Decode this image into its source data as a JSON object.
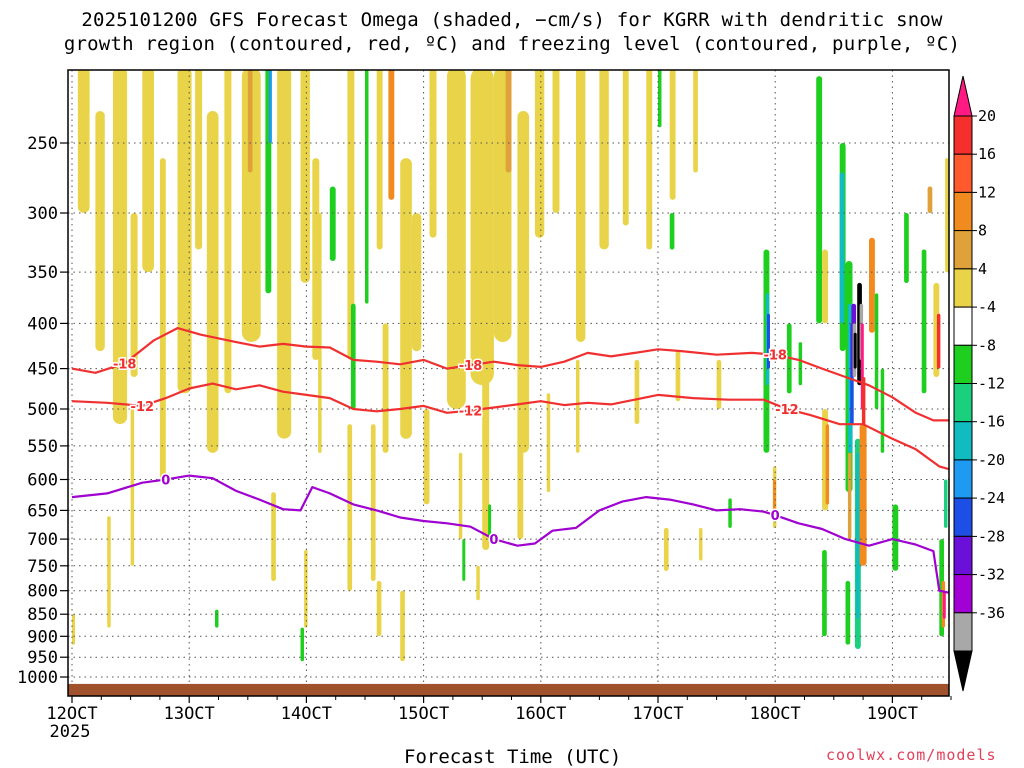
{
  "chart_data": {
    "type": "heatmap",
    "title": "2025101200 GFS Forecast Omega (shaded, −cm/s) for KGRR with dendritic snow\ngrowth region (contoured, red, ºC) and freezing level (contoured, purple, ºC)",
    "xlabel": "Forecast Time (UTC)",
    "ylabel": "",
    "x_ticks": [
      "12OCT",
      "13OCT",
      "14OCT",
      "15OCT",
      "16OCT",
      "17OCT",
      "18OCT",
      "19OCT"
    ],
    "x_tick_sub": "2025",
    "y_ticks": [
      250,
      300,
      350,
      400,
      450,
      500,
      550,
      600,
      650,
      700,
      750,
      800,
      850,
      900,
      950,
      1000
    ],
    "ylim": [
      1025,
      200
    ],
    "xlim_days": [
      12.0,
      19.5
    ],
    "grid": true,
    "colorbar": {
      "labels": [
        "20",
        "16",
        "12",
        "8",
        "4",
        "-4",
        "-8",
        "-12",
        "-16",
        "-20",
        "-24",
        "-28",
        "-32",
        "-36"
      ],
      "colors": [
        "#ff1a84",
        "#f52e2e",
        "#ff5a2e",
        "#f28b1f",
        "#dfa23a",
        "#e9d449",
        "#ffffff",
        "#1fcf1f",
        "#1acf7d",
        "#10bcc0",
        "#1e9af3",
        "#1d4fe6",
        "#6a10d8",
        "#a300d6",
        "#a8a8a8",
        "#000000"
      ]
    },
    "contours": [
      {
        "label": "-18",
        "color": "#f03030",
        "points": [
          [
            12.0,
            450
          ],
          [
            12.2,
            455
          ],
          [
            12.45,
            444
          ],
          [
            12.7,
            418
          ],
          [
            12.9,
            405
          ],
          [
            13.1,
            412
          ],
          [
            13.4,
            420
          ],
          [
            13.6,
            425
          ],
          [
            13.8,
            422
          ],
          [
            14.0,
            425
          ],
          [
            14.2,
            426
          ],
          [
            14.4,
            440
          ],
          [
            14.6,
            442
          ],
          [
            14.8,
            445
          ],
          [
            15.0,
            440
          ],
          [
            15.2,
            450
          ],
          [
            15.4,
            446
          ],
          [
            15.6,
            442
          ],
          [
            15.8,
            446
          ],
          [
            16.0,
            448
          ],
          [
            16.2,
            442
          ],
          [
            16.4,
            432
          ],
          [
            16.6,
            436
          ],
          [
            16.8,
            432
          ],
          [
            17.0,
            428
          ],
          [
            17.2,
            430
          ],
          [
            17.5,
            434
          ],
          [
            17.8,
            432
          ],
          [
            18.0,
            434
          ],
          [
            18.2,
            440
          ],
          [
            18.4,
            450
          ],
          [
            18.6,
            460
          ],
          [
            18.8,
            470
          ],
          [
            19.0,
            485
          ],
          [
            19.2,
            505
          ],
          [
            19.35,
            515
          ],
          [
            19.5,
            515
          ]
        ]
      },
      {
        "label": "-12",
        "color": "#f03030",
        "points": [
          [
            12.0,
            490
          ],
          [
            12.3,
            492
          ],
          [
            12.6,
            496
          ],
          [
            12.8,
            486
          ],
          [
            13.0,
            474
          ],
          [
            13.2,
            468
          ],
          [
            13.4,
            475
          ],
          [
            13.6,
            470
          ],
          [
            13.8,
            478
          ],
          [
            14.0,
            482
          ],
          [
            14.2,
            486
          ],
          [
            14.4,
            500
          ],
          [
            14.6,
            503
          ],
          [
            14.8,
            500
          ],
          [
            15.0,
            496
          ],
          [
            15.2,
            505
          ],
          [
            15.4,
            502
          ],
          [
            15.6,
            498
          ],
          [
            15.8,
            494
          ],
          [
            16.0,
            490
          ],
          [
            16.2,
            495
          ],
          [
            16.4,
            492
          ],
          [
            16.6,
            494
          ],
          [
            16.8,
            488
          ],
          [
            17.0,
            482
          ],
          [
            17.3,
            486
          ],
          [
            17.6,
            488
          ],
          [
            17.9,
            488
          ],
          [
            18.1,
            500
          ],
          [
            18.3,
            508
          ],
          [
            18.55,
            520
          ],
          [
            18.75,
            520
          ],
          [
            19.0,
            540
          ],
          [
            19.2,
            555
          ],
          [
            19.4,
            580
          ],
          [
            19.5,
            585
          ]
        ]
      },
      {
        "label": "0",
        "color": "#a000d0",
        "points": [
          [
            12.0,
            628
          ],
          [
            12.3,
            622
          ],
          [
            12.6,
            605
          ],
          [
            12.8,
            600
          ],
          [
            13.0,
            594
          ],
          [
            13.2,
            598
          ],
          [
            13.4,
            618
          ],
          [
            13.6,
            632
          ],
          [
            13.8,
            648
          ],
          [
            13.95,
            650
          ],
          [
            14.05,
            612
          ],
          [
            14.2,
            622
          ],
          [
            14.4,
            640
          ],
          [
            14.6,
            650
          ],
          [
            14.8,
            662
          ],
          [
            15.0,
            668
          ],
          [
            15.2,
            672
          ],
          [
            15.4,
            678
          ],
          [
            15.6,
            700
          ],
          [
            15.8,
            712
          ],
          [
            15.95,
            708
          ],
          [
            16.1,
            685
          ],
          [
            16.3,
            680
          ],
          [
            16.5,
            650
          ],
          [
            16.7,
            635
          ],
          [
            16.9,
            628
          ],
          [
            17.1,
            632
          ],
          [
            17.3,
            640
          ],
          [
            17.5,
            650
          ],
          [
            17.7,
            648
          ],
          [
            17.9,
            652
          ],
          [
            18.0,
            658
          ],
          [
            18.2,
            672
          ],
          [
            18.4,
            682
          ],
          [
            18.6,
            700
          ],
          [
            18.8,
            712
          ],
          [
            19.0,
            700
          ],
          [
            19.2,
            710
          ],
          [
            19.35,
            722
          ],
          [
            19.4,
            800
          ],
          [
            19.5,
            805
          ]
        ]
      }
    ]
  }
}
